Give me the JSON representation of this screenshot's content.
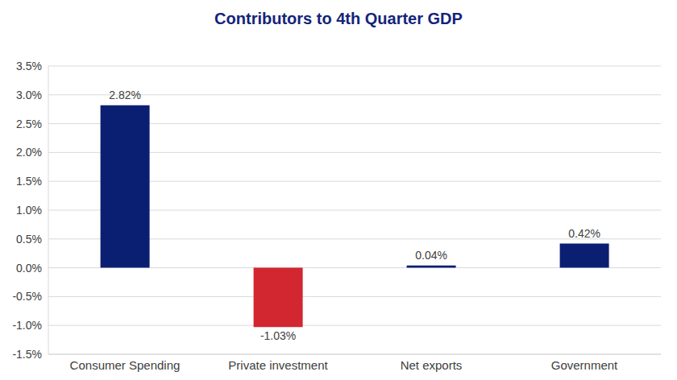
{
  "chart_data": {
    "type": "bar",
    "title": "Contributors to 4th Quarter GDP",
    "categories": [
      "Consumer Spending",
      "Private investment",
      "Net exports",
      "Government"
    ],
    "values": [
      2.82,
      -1.03,
      0.04,
      0.42
    ],
    "value_labels": [
      "2.82%",
      "-1.03%",
      "0.04%",
      "0.42%"
    ],
    "colors": [
      "#0b1f72",
      "#d22630",
      "#0b1f72",
      "#0b1f72"
    ],
    "ylim": [
      -1.5,
      3.5
    ],
    "yticks": [
      {
        "value": -1.5,
        "label": "-1.5%"
      },
      {
        "value": -1.0,
        "label": "-1.0%"
      },
      {
        "value": -0.5,
        "label": "-0.5%"
      },
      {
        "value": 0,
        "label": "0.0%"
      },
      {
        "value": 0.5,
        "label": "0.5%"
      },
      {
        "value": 1.0,
        "label": "1.0%"
      },
      {
        "value": 1.5,
        "label": "1.5%"
      },
      {
        "value": 2.0,
        "label": "2.0%"
      },
      {
        "value": 2.5,
        "label": "2.5%"
      },
      {
        "value": 3.0,
        "label": "3.0%"
      },
      {
        "value": 3.5,
        "label": "3.5%"
      }
    ],
    "grid": true,
    "data_labels": true
  }
}
